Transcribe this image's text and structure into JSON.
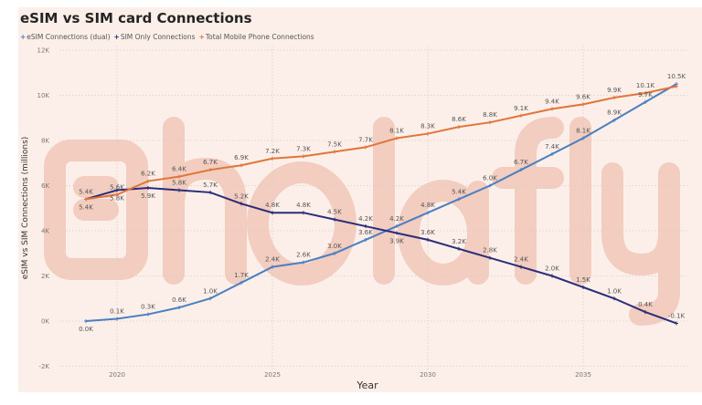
{
  "chart_data": {
    "type": "line",
    "title": "eSIM vs SIM card Connections",
    "xlabel": "Year",
    "ylabel": "eSIM vs SIM Connections (millions)",
    "ylim": [
      -2,
      12
    ],
    "yticks": [
      "-2K",
      "0K",
      "2K",
      "4K",
      "6K",
      "8K",
      "10K",
      "12K"
    ],
    "yticks_values": [
      -2,
      0,
      2,
      4,
      6,
      8,
      10,
      12
    ],
    "xticks": [
      2020,
      2025,
      2030,
      2035
    ],
    "grid": true,
    "legend_placement": "top-left",
    "x": [
      2019,
      2020,
      2021,
      2022,
      2023,
      2024,
      2025,
      2026,
      2027,
      2028,
      2029,
      2030,
      2031,
      2032,
      2033,
      2034,
      2035,
      2036,
      2037,
      2038
    ],
    "series": [
      {
        "name": "eSIM Connections (dual)",
        "color": "#4a7fc1",
        "values": [
          0.0,
          0.1,
          0.3,
          0.6,
          1.0,
          1.7,
          2.4,
          2.6,
          3.0,
          3.6,
          4.2,
          4.8,
          5.4,
          6.0,
          6.7,
          7.4,
          8.1,
          8.9,
          9.7,
          10.5
        ],
        "labels": [
          "0.0K",
          "0.1K",
          "0.3K",
          "0.6K",
          "1.0K",
          "1.7K",
          "2.4K",
          "2.6K",
          "3.0K",
          "3.6K",
          "4.2K",
          "4.8K",
          "5.4K",
          "6.0K",
          "6.7K",
          "7.4K",
          "8.1K",
          "8.9K",
          "9.7K",
          "10.5K"
        ]
      },
      {
        "name": "SIM Only Connections",
        "color": "#2b2d7a",
        "values": [
          5.4,
          5.8,
          5.9,
          5.8,
          5.7,
          5.2,
          4.8,
          4.8,
          4.5,
          4.2,
          3.9,
          3.6,
          3.2,
          2.8,
          2.4,
          2.0,
          1.5,
          1.0,
          0.4,
          -0.1
        ],
        "labels": [
          "5.4K",
          "5.8K",
          "5.9K",
          "5.8K",
          "5.7K",
          "5.2K",
          "4.8K",
          "4.8K",
          "4.5K",
          "4.2K",
          "3.9K",
          "3.6K",
          "3.2K",
          "2.8K",
          "2.4K",
          "2.0K",
          "1.5K",
          "1.0K",
          "0.4K",
          "-0.1K"
        ]
      },
      {
        "name": "Total Mobile Phone Connections",
        "color": "#e0763a",
        "values": [
          5.4,
          5.6,
          6.2,
          6.4,
          6.7,
          6.9,
          7.2,
          7.3,
          7.5,
          7.7,
          8.1,
          8.3,
          8.6,
          8.8,
          9.1,
          9.4,
          9.6,
          9.9,
          10.1,
          10.4
        ],
        "labels": [
          "5.4K",
          "5.6K",
          "6.2K",
          "6.4K",
          "6.7K",
          "6.9K",
          "7.2K",
          "7.3K",
          "7.5K",
          "7.7K",
          "8.1K",
          "8.3K",
          "8.6K",
          "8.8K",
          "9.1K",
          "9.4K",
          "9.6K",
          "9.9K",
          "10.1K",
          ""
        ]
      }
    ]
  },
  "watermark": {
    "text": "holafly",
    "color": "#eab3a0"
  }
}
